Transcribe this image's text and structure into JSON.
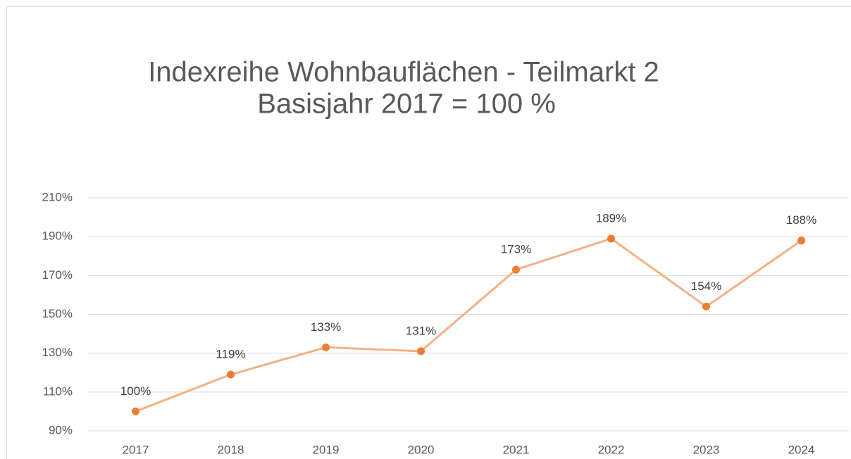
{
  "chart_data": {
    "type": "line",
    "title": [
      "Indexreihe Wohnbauflächen - Teilmarkt 2",
      "Basisjahr 2017 = 100 %"
    ],
    "categories": [
      "2017",
      "2018",
      "2019",
      "2020",
      "2021",
      "2022",
      "2023",
      "2024"
    ],
    "values": [
      100,
      119,
      133,
      131,
      173,
      189,
      154,
      188
    ],
    "value_labels": [
      "100%",
      "119%",
      "133%",
      "131%",
      "173%",
      "189%",
      "154%",
      "188%"
    ],
    "line_color": "#f4b183",
    "marker_color": "#ed7d31",
    "ylim": [
      90,
      210
    ],
    "yticks": [
      {
        "value": 90,
        "label": "90%"
      },
      {
        "value": 110,
        "label": "110%"
      },
      {
        "value": 130,
        "label": "130%"
      },
      {
        "value": 150,
        "label": "150%"
      },
      {
        "value": 170,
        "label": "170%"
      },
      {
        "value": 190,
        "label": "190%"
      },
      {
        "value": 210,
        "label": "210%"
      }
    ],
    "grid": true
  }
}
